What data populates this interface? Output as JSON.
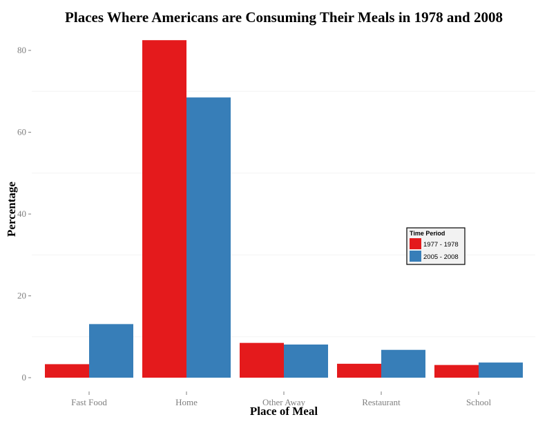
{
  "chart_data": {
    "type": "bar",
    "title": "Places Where Americans are Consuming Their Meals in 1978 and 2008",
    "xlabel": "Place of Meal",
    "ylabel": "Percentage",
    "categories": [
      "Fast Food",
      "Home",
      "Other Away",
      "Restaurant",
      "School"
    ],
    "series": [
      {
        "name": "1977 - 1978",
        "color": "#e41a1c",
        "values": [
          3.3,
          82.5,
          8.5,
          3.4,
          3.1
        ]
      },
      {
        "name": "2005 - 2008",
        "color": "#377eb8",
        "values": [
          13.1,
          68.5,
          8.1,
          6.8,
          3.7
        ]
      }
    ],
    "ylim": [
      0,
      85
    ],
    "yticks": [
      0,
      20,
      40,
      60,
      80
    ],
    "grid": true,
    "legend": {
      "title": "Time Period",
      "placement": "inside-right"
    }
  }
}
